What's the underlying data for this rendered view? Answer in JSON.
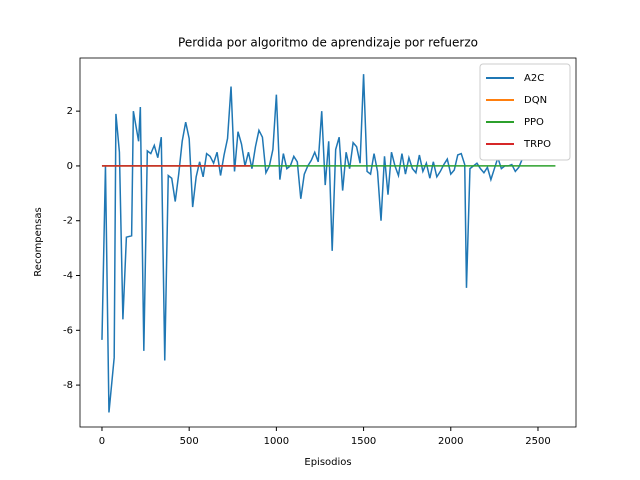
{
  "chart_data": {
    "type": "line",
    "title": "Perdida por algoritmo de aprendizaje por refuerzo",
    "x_label": "Episodios",
    "y_label": "Recompensas",
    "xlim": [
      -126,
      2718
    ],
    "ylim": [
      -9.53,
      3.94
    ],
    "xticks": [
      0,
      500,
      1000,
      1500,
      2000,
      2500
    ],
    "yticks": [
      -8,
      -6,
      -4,
      -2,
      0,
      2
    ],
    "legend": "upper right",
    "series": [
      {
        "name": "A2C",
        "color": "#1f77b4",
        "x": [
          0,
          20,
          40,
          70,
          80,
          100,
          120,
          140,
          170,
          180,
          210,
          220,
          240,
          260,
          280,
          300,
          320,
          340,
          360,
          380,
          400,
          420,
          440,
          460,
          480,
          500,
          520,
          540,
          560,
          580,
          600,
          620,
          640,
          660,
          680,
          700,
          720,
          740,
          760,
          780,
          800,
          820,
          840,
          860,
          880,
          900,
          920,
          940,
          960,
          980,
          1000,
          1020,
          1040,
          1060,
          1080,
          1100,
          1120,
          1140,
          1160,
          1180,
          1200,
          1220,
          1240,
          1260,
          1280,
          1300,
          1320,
          1340,
          1360,
          1380,
          1400,
          1420,
          1440,
          1460,
          1480,
          1500,
          1520,
          1540,
          1560,
          1580,
          1600,
          1620,
          1640,
          1660,
          1680,
          1700,
          1720,
          1740,
          1760,
          1780,
          1800,
          1820,
          1840,
          1860,
          1880,
          1900,
          1920,
          1940,
          1960,
          1980,
          2000,
          2020,
          2040,
          2060,
          2080,
          2090,
          2110,
          2130,
          2150,
          2170,
          2190,
          2210,
          2230,
          2250,
          2270,
          2290,
          2310,
          2330,
          2350,
          2370,
          2390,
          2410
        ],
        "values": [
          -6.35,
          0,
          -9.0,
          -7.0,
          1.9,
          0.5,
          -5.6,
          -2.6,
          -2.55,
          2.0,
          0.9,
          2.15,
          -6.75,
          0.55,
          0.45,
          0.75,
          0.3,
          1.05,
          -7.1,
          -0.35,
          -0.45,
          -1.3,
          -0.3,
          0.9,
          1.6,
          1.0,
          -1.5,
          -0.4,
          0.15,
          -0.4,
          0.45,
          0.35,
          0.1,
          0.5,
          -0.35,
          0.4,
          1.0,
          2.9,
          -0.2,
          1.25,
          0.8,
          0.0,
          0.5,
          -0.1,
          0.7,
          1.3,
          1.05,
          -0.25,
          0.0,
          0.6,
          2.6,
          -0.5,
          0.45,
          -0.1,
          0.0,
          0.35,
          0.15,
          -1.2,
          -0.3,
          0.0,
          0.2,
          0.5,
          0.15,
          2.0,
          -0.7,
          0.9,
          -3.1,
          0.6,
          1.05,
          -0.9,
          0.5,
          -0.1,
          0.85,
          0.7,
          0.1,
          3.35,
          -0.2,
          -0.3,
          0.45,
          -0.2,
          -2.0,
          0.35,
          -1.05,
          0.5,
          0.0,
          -0.35,
          0.45,
          -0.3,
          0.3,
          -0.1,
          -0.25,
          0.4,
          -0.2,
          0.1,
          -0.45,
          0.15,
          -0.4,
          -0.2,
          0.05,
          0.25,
          -0.3,
          -0.15,
          0.4,
          0.45,
          0.05,
          -4.45,
          -0.1,
          0.0,
          0.1,
          -0.1,
          -0.25,
          -0.05,
          -0.5,
          -0.1,
          0.3,
          -0.1,
          0.0,
          0.0,
          0.05,
          -0.2,
          -0.05,
          0.25
        ]
      },
      {
        "name": "DQN",
        "color": "#ff7f0e",
        "x": [
          0,
          850
        ],
        "values": [
          0,
          0
        ]
      },
      {
        "name": "PPO",
        "color": "#2ca02c",
        "x": [
          0,
          2600
        ],
        "values": [
          0,
          0
        ]
      },
      {
        "name": "TRPO",
        "color": "#d62728",
        "x": [
          0,
          850
        ],
        "values": [
          0,
          0
        ]
      }
    ]
  }
}
